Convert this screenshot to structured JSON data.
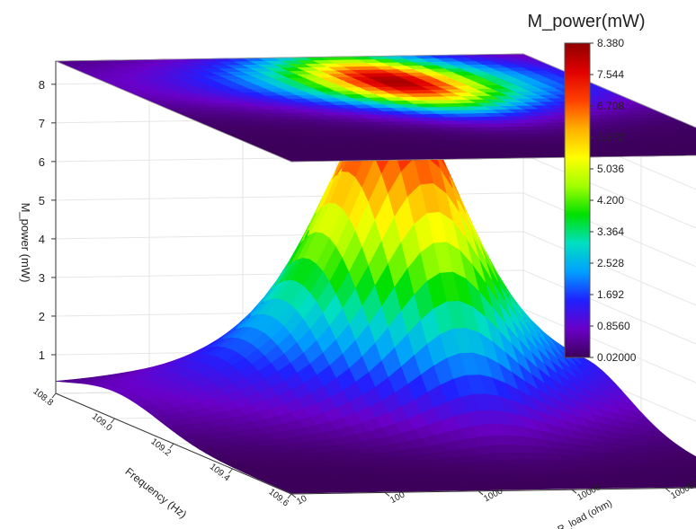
{
  "chart_data": {
    "type": "surface3d",
    "zlabel": "M_power (mW)",
    "xlabel": "Frequency (Hz)",
    "ylabel": "R_load (ohm)",
    "x_ticks": [
      "108.8",
      "109.0",
      "109.2",
      "109.4",
      "109.6"
    ],
    "y_ticks": [
      "10",
      "100",
      "1000",
      "10000",
      "100000",
      "1000000"
    ],
    "y_scale": "log",
    "z_ticks": [
      "1",
      "2",
      "3",
      "4",
      "5",
      "6",
      "7",
      "8"
    ],
    "zlim": [
      0.02,
      8.38
    ],
    "xlim": [
      108.8,
      109.6
    ],
    "ylim": [
      10,
      1000000
    ],
    "peak": {
      "frequency": 109.0,
      "r_load": 10000,
      "power": 8.38
    },
    "projection_on_top": true,
    "colorbar": {
      "title": "M_power(mW)",
      "ticks": [
        "8.380",
        "7.544",
        "6.708",
        "5.872",
        "5.036",
        "4.200",
        "3.364",
        "2.528",
        "1.692",
        "0.8560",
        "0.02000"
      ],
      "colormap": [
        "#3c005a",
        "#6a00c8",
        "#2020ff",
        "#00a0ff",
        "#00e0c0",
        "#00e000",
        "#a0ff00",
        "#ffff00",
        "#ffb000",
        "#ff4000",
        "#e00000",
        "#900000"
      ]
    },
    "grid": true
  }
}
